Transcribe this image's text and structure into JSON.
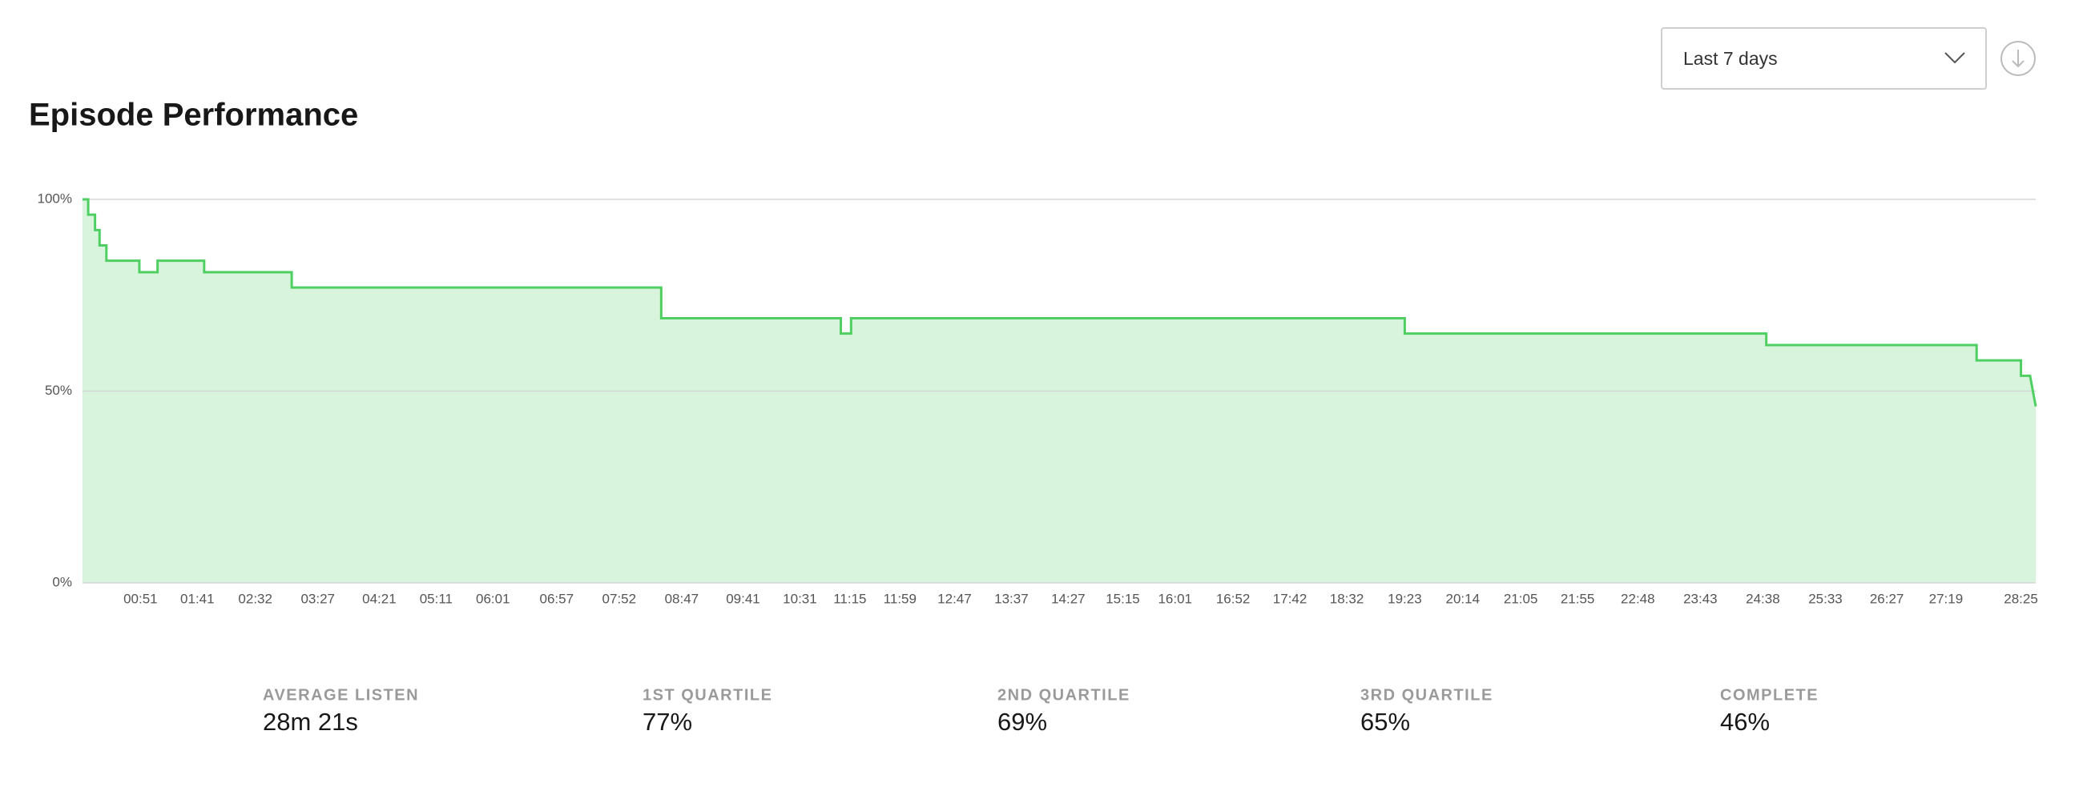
{
  "header": {
    "title": "Episode Performance",
    "range": "Last 7 days"
  },
  "chart_data": {
    "type": "line",
    "color": "#4fcf62",
    "grid": true,
    "x": [
      0,
      5,
      5,
      11,
      11,
      15,
      15,
      21,
      21,
      50,
      50,
      66,
      66,
      107,
      107,
      184,
      184,
      509,
      509,
      667,
      667,
      676,
      676,
      1163,
      1163,
      1481,
      1481,
      1666,
      1666,
      1705,
      1705,
      1713,
      1718
    ],
    "values": [
      100,
      100,
      96,
      96,
      92,
      92,
      88,
      88,
      84,
      84,
      81,
      81,
      84,
      84,
      81,
      81,
      77,
      77,
      69,
      69,
      65,
      65,
      69,
      69,
      65,
      65,
      62,
      62,
      58,
      58,
      54,
      54,
      46
    ],
    "xlim": [
      0,
      1718
    ],
    "ylim": [
      0,
      100
    ],
    "yticks": [
      {
        "value": 0,
        "label": "0%"
      },
      {
        "value": 50,
        "label": "50%"
      },
      {
        "value": 100,
        "label": "100%"
      }
    ],
    "xticks": [
      {
        "value": 51,
        "label": "00:51"
      },
      {
        "value": 101,
        "label": "01:41"
      },
      {
        "value": 152,
        "label": "02:32"
      },
      {
        "value": 207,
        "label": "03:27"
      },
      {
        "value": 261,
        "label": "04:21"
      },
      {
        "value": 311,
        "label": "05:11"
      },
      {
        "value": 361,
        "label": "06:01"
      },
      {
        "value": 417,
        "label": "06:57"
      },
      {
        "value": 472,
        "label": "07:52"
      },
      {
        "value": 527,
        "label": "08:47"
      },
      {
        "value": 581,
        "label": "09:41"
      },
      {
        "value": 631,
        "label": "10:31"
      },
      {
        "value": 675,
        "label": "11:15"
      },
      {
        "value": 719,
        "label": "11:59"
      },
      {
        "value": 767,
        "label": "12:47"
      },
      {
        "value": 817,
        "label": "13:37"
      },
      {
        "value": 867,
        "label": "14:27"
      },
      {
        "value": 915,
        "label": "15:15"
      },
      {
        "value": 961,
        "label": "16:01"
      },
      {
        "value": 1012,
        "label": "16:52"
      },
      {
        "value": 1062,
        "label": "17:42"
      },
      {
        "value": 1112,
        "label": "18:32"
      },
      {
        "value": 1163,
        "label": "19:23"
      },
      {
        "value": 1214,
        "label": "20:14"
      },
      {
        "value": 1265,
        "label": "21:05"
      },
      {
        "value": 1315,
        "label": "21:55"
      },
      {
        "value": 1368,
        "label": "22:48"
      },
      {
        "value": 1423,
        "label": "23:43"
      },
      {
        "value": 1478,
        "label": "24:38"
      },
      {
        "value": 1533,
        "label": "25:33"
      },
      {
        "value": 1587,
        "label": "26:27"
      },
      {
        "value": 1639,
        "label": "27:19"
      },
      {
        "value": 1705,
        "label": "28:25"
      }
    ]
  },
  "stats": [
    {
      "label": "AVERAGE LISTEN",
      "value": "28m 21s"
    },
    {
      "label": "1ST QUARTILE",
      "value": "77%"
    },
    {
      "label": "2ND QUARTILE",
      "value": "69%"
    },
    {
      "label": "3RD QUARTILE",
      "value": "65%"
    },
    {
      "label": "COMPLETE",
      "value": "46%"
    }
  ]
}
